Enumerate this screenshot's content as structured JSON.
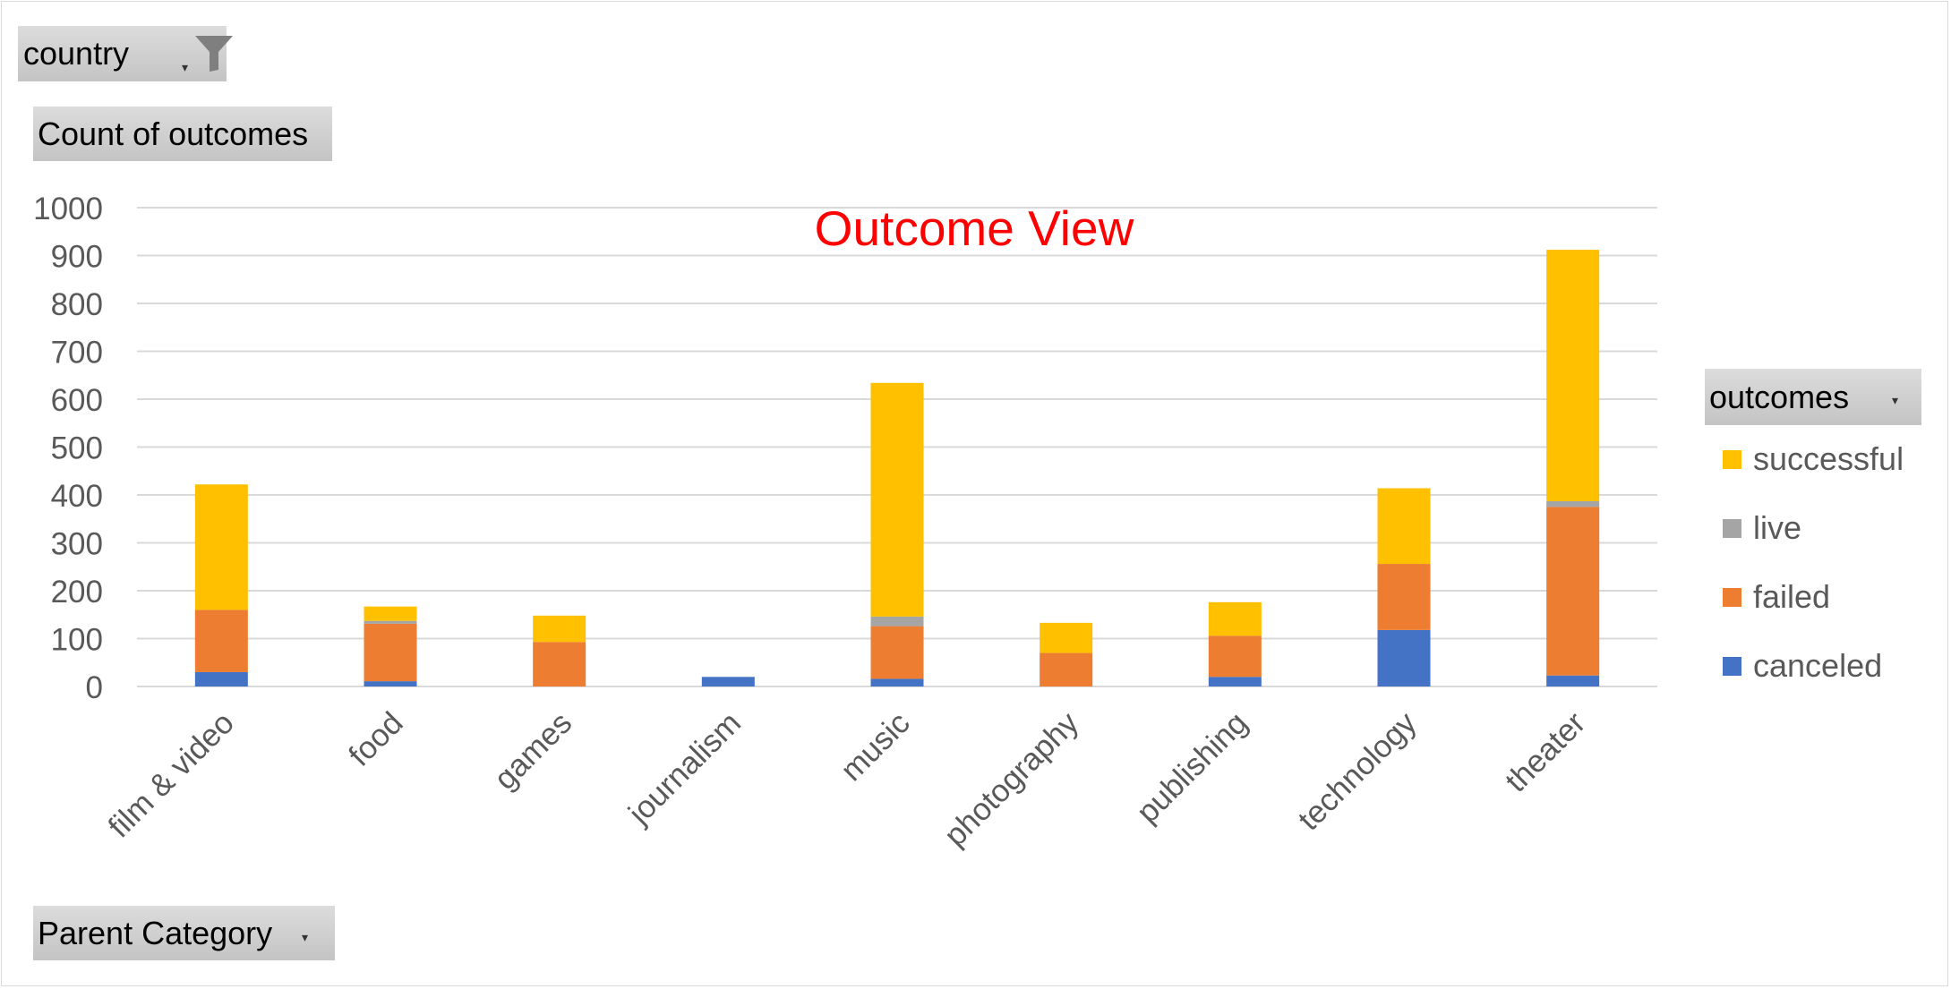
{
  "filters": {
    "country_label": "country",
    "values_label": "Count of outcomes",
    "axis_field_label": "Parent Category",
    "legend_field_label": "outcomes"
  },
  "colors": {
    "successful": "#FFC000",
    "live": "#A5A5A5",
    "failed": "#ED7D31",
    "canceled": "#4472C4",
    "title": "#FF0000",
    "gridline": "#D9D9D9",
    "axis_text": "#595959"
  },
  "chart_data": {
    "type": "bar",
    "stacked": true,
    "title": "Outcome View",
    "xlabel": "",
    "ylabel": "",
    "ylim": [
      0,
      1000
    ],
    "yticks": [
      0,
      100,
      200,
      300,
      400,
      500,
      600,
      700,
      800,
      900,
      1000
    ],
    "grid": true,
    "legend_position": "right",
    "categories": [
      "film & video",
      "food",
      "games",
      "journalism",
      "music",
      "photography",
      "publishing",
      "technology",
      "theater"
    ],
    "series": [
      {
        "name": "canceled",
        "values": [
          30,
          11,
          0,
          20,
          16,
          0,
          20,
          118,
          23
        ]
      },
      {
        "name": "failed",
        "values": [
          130,
          120,
          93,
          0,
          110,
          70,
          86,
          138,
          352
        ]
      },
      {
        "name": "live",
        "values": [
          0,
          6,
          0,
          0,
          20,
          0,
          0,
          0,
          12
        ]
      },
      {
        "name": "successful",
        "values": [
          262,
          30,
          55,
          0,
          488,
          63,
          70,
          158,
          525
        ]
      }
    ]
  }
}
